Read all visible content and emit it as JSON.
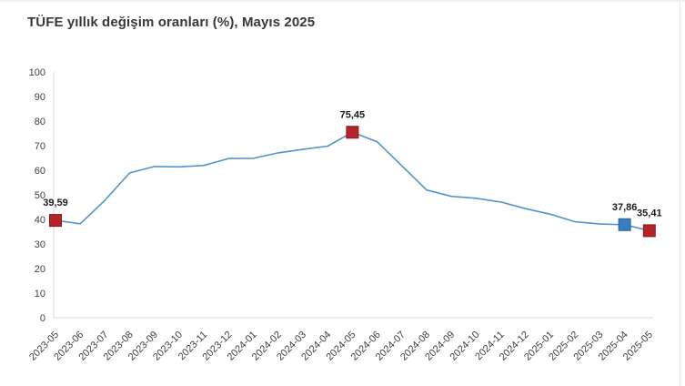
{
  "page": {
    "title": "TÜFE yıllık değişim oranları (%), Mayıs 2025"
  },
  "chart_data": {
    "type": "line",
    "title": "TÜFE yıllık değişim oranları (%), Mayıs 2025",
    "xlabel": "",
    "ylabel": "",
    "ylim": [
      0,
      100
    ],
    "yticks": [
      0,
      10,
      20,
      30,
      40,
      50,
      60,
      70,
      80,
      90,
      100
    ],
    "grid": false,
    "legend": "none",
    "line_color": "#5494cb",
    "axis_color": "#d9d9d9",
    "x": [
      "2023-05",
      "2023-06",
      "2023-07",
      "2023-08",
      "2023-09",
      "2023-10",
      "2023-11",
      "2023-12",
      "2024-01",
      "2024-02",
      "2024-03",
      "2024-04",
      "2024-05",
      "2024-06",
      "2024-07",
      "2024-08",
      "2024-09",
      "2024-10",
      "2024-11",
      "2024-12",
      "2025-01",
      "2025-02",
      "2025-03",
      "2025-04",
      "2025-05"
    ],
    "series": [
      {
        "name": "TÜFE yıllık değişim oranı (%)",
        "values": [
          39.59,
          38.21,
          47.83,
          58.94,
          61.53,
          61.36,
          61.98,
          64.77,
          64.86,
          67.07,
          68.5,
          69.8,
          75.45,
          71.6,
          61.78,
          51.97,
          49.38,
          48.58,
          47.09,
          44.38,
          42.12,
          39.05,
          38.1,
          37.86,
          35.41
        ]
      }
    ],
    "annotations": [
      {
        "x": "2023-05",
        "label": "39,59",
        "marker": "square",
        "fill": "#b42328",
        "border": "#8c161c"
      },
      {
        "x": "2024-05",
        "label": "75,45",
        "marker": "square",
        "fill": "#b42328",
        "border": "#8c161c"
      },
      {
        "x": "2025-04",
        "label": "37,86",
        "marker": "square",
        "fill": "#3b7ebf",
        "border": "#2c5f94"
      },
      {
        "x": "2025-05",
        "label": "35,41",
        "marker": "square",
        "fill": "#b42328",
        "border": "#8c161c"
      }
    ]
  }
}
